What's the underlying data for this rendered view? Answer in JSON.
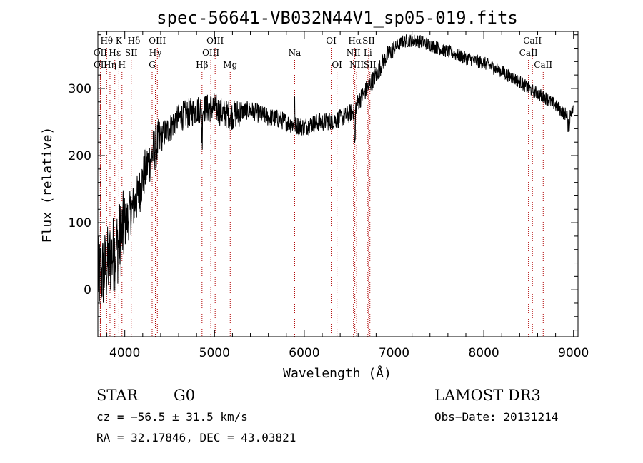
{
  "chart_data": {
    "type": "line",
    "title": "spec-56641-VB032N44V1_sp05-019.fits",
    "xlabel": "Wavelength (Å)",
    "ylabel": "Flux (relative)",
    "xlim": [
      3700,
      9050
    ],
    "ylim": [
      -70,
      385
    ],
    "xticks": [
      4000,
      5000,
      6000,
      7000,
      8000,
      9000
    ],
    "yticks": [
      0,
      100,
      200,
      300
    ],
    "spectrum_anchors": {
      "x": [
        3700,
        3750,
        3800,
        3850,
        3900,
        3950,
        4000,
        4050,
        4100,
        4150,
        4200,
        4250,
        4300,
        4350,
        4400,
        4450,
        4500,
        4550,
        4600,
        4650,
        4700,
        4750,
        4800,
        4850,
        4900,
        5000,
        5100,
        5200,
        5300,
        5400,
        5500,
        5600,
        5700,
        5800,
        5900,
        6000,
        6100,
        6200,
        6300,
        6400,
        6500,
        6560,
        6600,
        6700,
        6800,
        6900,
        7000,
        7100,
        7200,
        7300,
        7400,
        7600,
        7800,
        8000,
        8200,
        8400,
        8500,
        8600,
        8700,
        8800,
        8900,
        8950,
        9000
      ],
      "y": [
        20,
        25,
        35,
        50,
        60,
        75,
        95,
        110,
        125,
        140,
        165,
        185,
        200,
        215,
        225,
        235,
        240,
        250,
        255,
        260,
        262,
        265,
        268,
        270,
        270,
        272,
        262,
        260,
        265,
        268,
        262,
        257,
        255,
        250,
        245,
        243,
        248,
        250,
        252,
        255,
        262,
        268,
        280,
        300,
        320,
        345,
        360,
        370,
        372,
        370,
        365,
        355,
        345,
        338,
        325,
        310,
        300,
        292,
        285,
        275,
        262,
        265,
        268
      ]
    },
    "lines": [
      {
        "label": "Hθ",
        "x": 3798,
        "row": 1
      },
      {
        "label": "OII",
        "x": 3727,
        "row": 2
      },
      {
        "label": "Hη",
        "x": 3835,
        "row": 3
      },
      {
        "label": "OII",
        "x": 3729,
        "row": 3
      },
      {
        "label": "K",
        "x": 3934,
        "row": 1
      },
      {
        "label": "Hε",
        "x": 3889,
        "row": 2
      },
      {
        "label": "H",
        "x": 3969,
        "row": 3
      },
      {
        "label": "Hδ",
        "x": 4102,
        "row": 1
      },
      {
        "label": "SII",
        "x": 4072,
        "row": 2
      },
      {
        "label": "OIII",
        "x": 4363,
        "row": 1
      },
      {
        "label": "Hγ",
        "x": 4341,
        "row": 2
      },
      {
        "label": "G",
        "x": 4305,
        "row": 3
      },
      {
        "label": "Hβ",
        "x": 4861,
        "row": 3
      },
      {
        "label": "OIII",
        "x": 5007,
        "row": 1
      },
      {
        "label": "OIII",
        "x": 4959,
        "row": 2
      },
      {
        "label": "Mg",
        "x": 5175,
        "row": 3
      },
      {
        "label": "Na",
        "x": 5893,
        "row": 2
      },
      {
        "label": "OI",
        "x": 6300,
        "row": 1
      },
      {
        "label": "OI",
        "x": 6364,
        "row": 3
      },
      {
        "label": "Hα",
        "x": 6563,
        "row": 1
      },
      {
        "label": "NII",
        "x": 6548,
        "row": 2
      },
      {
        "label": "NII",
        "x": 6583,
        "row": 3
      },
      {
        "label": "SII",
        "x": 6717,
        "row": 1
      },
      {
        "label": "Li",
        "x": 6708,
        "row": 2
      },
      {
        "label": "SII",
        "x": 6731,
        "row": 3
      },
      {
        "label": "CaII",
        "x": 8542,
        "row": 1
      },
      {
        "label": "CaII",
        "x": 8498,
        "row": 2
      },
      {
        "label": "CaII",
        "x": 8662,
        "row": 3
      }
    ],
    "line_color": "#b00000"
  },
  "info": {
    "object_type": "STAR",
    "subclass": "G0",
    "survey": "LAMOST DR3",
    "cz": "cz = −56.5 ± 31.5 km/s",
    "obs_date": "Obs−Date: 20131214",
    "coords": "RA =  32.17846, DEC =  43.03821"
  }
}
